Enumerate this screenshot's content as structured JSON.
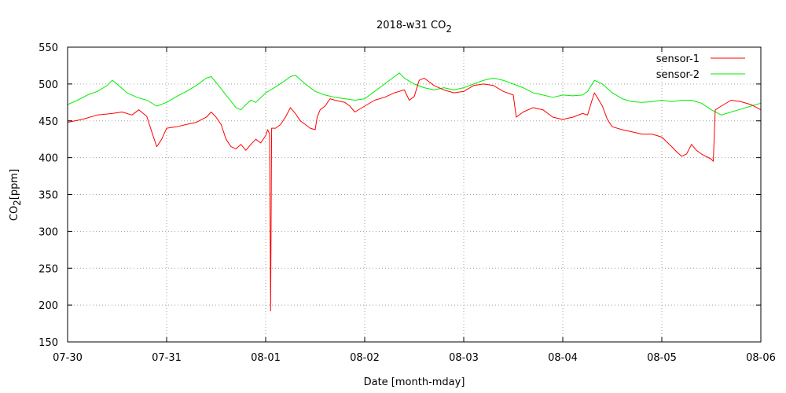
{
  "chart_data": {
    "type": "line",
    "title": "2018-w31 CO",
    "title_subscript": "2",
    "xlabel": "Date [month-mday]",
    "ylabel": "CO",
    "ylabel_subscript": "2",
    "ylabel_unit": "[ppm]",
    "x_unit": "days",
    "xlim": [
      0,
      7
    ],
    "ylim": [
      150,
      550
    ],
    "grid": true,
    "legend_position": "top-right",
    "x_ticks": [
      "07-30",
      "07-31",
      "08-01",
      "08-02",
      "08-03",
      "08-04",
      "08-05",
      "08-06"
    ],
    "y_ticks": [
      "150",
      "200",
      "250",
      "300",
      "350",
      "400",
      "450",
      "500",
      "550"
    ],
    "series": [
      {
        "name": "sensor-1",
        "color": "#ff0000",
        "points": [
          [
            0.0,
            448
          ],
          [
            0.15,
            452
          ],
          [
            0.3,
            458
          ],
          [
            0.45,
            460
          ],
          [
            0.55,
            462
          ],
          [
            0.65,
            458
          ],
          [
            0.72,
            465
          ],
          [
            0.8,
            456
          ],
          [
            0.85,
            435
          ],
          [
            0.9,
            415
          ],
          [
            0.95,
            425
          ],
          [
            1.0,
            440
          ],
          [
            1.1,
            442
          ],
          [
            1.2,
            445
          ],
          [
            1.3,
            448
          ],
          [
            1.4,
            455
          ],
          [
            1.45,
            462
          ],
          [
            1.5,
            455
          ],
          [
            1.55,
            445
          ],
          [
            1.6,
            425
          ],
          [
            1.65,
            415
          ],
          [
            1.7,
            412
          ],
          [
            1.75,
            418
          ],
          [
            1.8,
            410
          ],
          [
            1.85,
            418
          ],
          [
            1.9,
            425
          ],
          [
            1.95,
            420
          ],
          [
            2.0,
            430
          ],
          [
            2.02,
            438
          ],
          [
            2.04,
            432
          ],
          [
            2.05,
            192
          ],
          [
            2.06,
            440
          ],
          [
            2.1,
            440
          ],
          [
            2.15,
            445
          ],
          [
            2.2,
            455
          ],
          [
            2.25,
            468
          ],
          [
            2.3,
            460
          ],
          [
            2.35,
            450
          ],
          [
            2.4,
            445
          ],
          [
            2.45,
            440
          ],
          [
            2.5,
            438
          ],
          [
            2.52,
            455
          ],
          [
            2.55,
            465
          ],
          [
            2.6,
            470
          ],
          [
            2.65,
            480
          ],
          [
            2.7,
            478
          ],
          [
            2.8,
            475
          ],
          [
            2.85,
            470
          ],
          [
            2.9,
            462
          ],
          [
            3.0,
            470
          ],
          [
            3.1,
            478
          ],
          [
            3.2,
            482
          ],
          [
            3.3,
            488
          ],
          [
            3.4,
            492
          ],
          [
            3.45,
            478
          ],
          [
            3.5,
            483
          ],
          [
            3.55,
            505
          ],
          [
            3.6,
            508
          ],
          [
            3.7,
            498
          ],
          [
            3.8,
            492
          ],
          [
            3.9,
            488
          ],
          [
            4.0,
            490
          ],
          [
            4.1,
            498
          ],
          [
            4.2,
            500
          ],
          [
            4.3,
            498
          ],
          [
            4.4,
            490
          ],
          [
            4.5,
            485
          ],
          [
            4.53,
            455
          ],
          [
            4.6,
            462
          ],
          [
            4.7,
            468
          ],
          [
            4.8,
            465
          ],
          [
            4.9,
            455
          ],
          [
            5.0,
            452
          ],
          [
            5.1,
            455
          ],
          [
            5.2,
            460
          ],
          [
            5.25,
            458
          ],
          [
            5.3,
            480
          ],
          [
            5.32,
            488
          ],
          [
            5.4,
            470
          ],
          [
            5.45,
            452
          ],
          [
            5.5,
            442
          ],
          [
            5.6,
            438
          ],
          [
            5.7,
            435
          ],
          [
            5.8,
            432
          ],
          [
            5.9,
            432
          ],
          [
            6.0,
            428
          ],
          [
            6.1,
            415
          ],
          [
            6.15,
            408
          ],
          [
            6.2,
            402
          ],
          [
            6.25,
            405
          ],
          [
            6.3,
            418
          ],
          [
            6.35,
            410
          ],
          [
            6.4,
            405
          ],
          [
            6.5,
            398
          ],
          [
            6.52,
            395
          ],
          [
            6.54,
            465
          ],
          [
            6.6,
            470
          ],
          [
            6.7,
            478
          ],
          [
            6.8,
            476
          ],
          [
            6.9,
            472
          ],
          [
            7.0,
            465
          ]
        ]
      },
      {
        "name": "sensor-2",
        "color": "#00ee00",
        "points": [
          [
            0.0,
            472
          ],
          [
            0.1,
            478
          ],
          [
            0.2,
            485
          ],
          [
            0.3,
            490
          ],
          [
            0.4,
            498
          ],
          [
            0.45,
            505
          ],
          [
            0.5,
            500
          ],
          [
            0.6,
            488
          ],
          [
            0.7,
            482
          ],
          [
            0.8,
            478
          ],
          [
            0.9,
            470
          ],
          [
            1.0,
            475
          ],
          [
            1.1,
            483
          ],
          [
            1.2,
            490
          ],
          [
            1.3,
            498
          ],
          [
            1.4,
            508
          ],
          [
            1.45,
            510
          ],
          [
            1.5,
            502
          ],
          [
            1.6,
            485
          ],
          [
            1.7,
            468
          ],
          [
            1.75,
            465
          ],
          [
            1.8,
            472
          ],
          [
            1.85,
            478
          ],
          [
            1.9,
            475
          ],
          [
            2.0,
            488
          ],
          [
            2.1,
            496
          ],
          [
            2.2,
            505
          ],
          [
            2.25,
            510
          ],
          [
            2.3,
            512
          ],
          [
            2.4,
            500
          ],
          [
            2.5,
            490
          ],
          [
            2.6,
            485
          ],
          [
            2.7,
            482
          ],
          [
            2.8,
            480
          ],
          [
            2.9,
            478
          ],
          [
            3.0,
            480
          ],
          [
            3.1,
            490
          ],
          [
            3.2,
            500
          ],
          [
            3.3,
            510
          ],
          [
            3.35,
            515
          ],
          [
            3.4,
            508
          ],
          [
            3.5,
            500
          ],
          [
            3.6,
            495
          ],
          [
            3.7,
            492
          ],
          [
            3.8,
            495
          ],
          [
            3.9,
            492
          ],
          [
            4.0,
            495
          ],
          [
            4.1,
            500
          ],
          [
            4.2,
            505
          ],
          [
            4.3,
            508
          ],
          [
            4.4,
            505
          ],
          [
            4.5,
            500
          ],
          [
            4.6,
            495
          ],
          [
            4.7,
            488
          ],
          [
            4.8,
            485
          ],
          [
            4.9,
            482
          ],
          [
            5.0,
            485
          ],
          [
            5.1,
            484
          ],
          [
            5.2,
            485
          ],
          [
            5.25,
            490
          ],
          [
            5.32,
            505
          ],
          [
            5.4,
            500
          ],
          [
            5.5,
            488
          ],
          [
            5.6,
            480
          ],
          [
            5.7,
            476
          ],
          [
            5.8,
            475
          ],
          [
            5.9,
            476
          ],
          [
            6.0,
            478
          ],
          [
            6.1,
            476
          ],
          [
            6.2,
            478
          ],
          [
            6.3,
            478
          ],
          [
            6.4,
            474
          ],
          [
            6.5,
            465
          ],
          [
            6.6,
            458
          ],
          [
            6.7,
            462
          ],
          [
            6.8,
            466
          ],
          [
            6.9,
            470
          ],
          [
            7.0,
            474
          ]
        ]
      }
    ]
  }
}
